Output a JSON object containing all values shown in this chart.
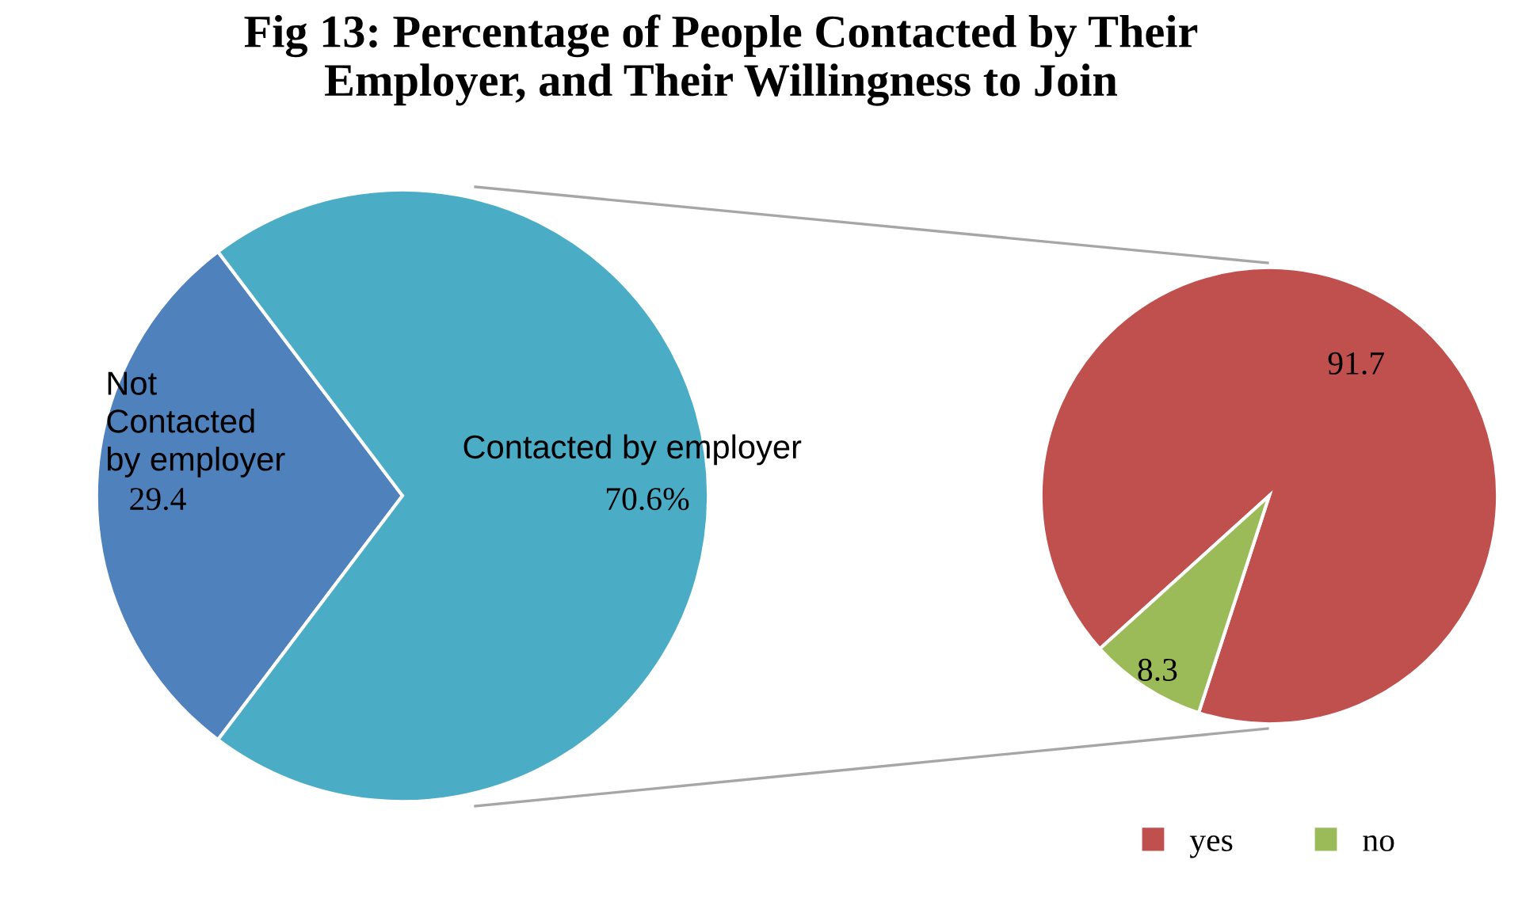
{
  "chart_data": [
    {
      "type": "pie",
      "title": "Fig 13: Percentage of People Contacted by Their\nEmployer, and Their Willingness to Join",
      "categories": [
        "Not\nContacted\nby employer",
        "Contacted by employer"
      ],
      "values": [
        29.4,
        70.6
      ],
      "value_labels": [
        "29.4",
        "70.6%"
      ],
      "colors": [
        "#4f81bd",
        "#4bacc6"
      ]
    },
    {
      "type": "pie",
      "categories": [
        "yes",
        "no"
      ],
      "values": [
        91.7,
        8.3
      ],
      "data_labels": true,
      "colors": [
        "#c0504d",
        "#9bbb59"
      ],
      "legend": "bottom"
    }
  ]
}
